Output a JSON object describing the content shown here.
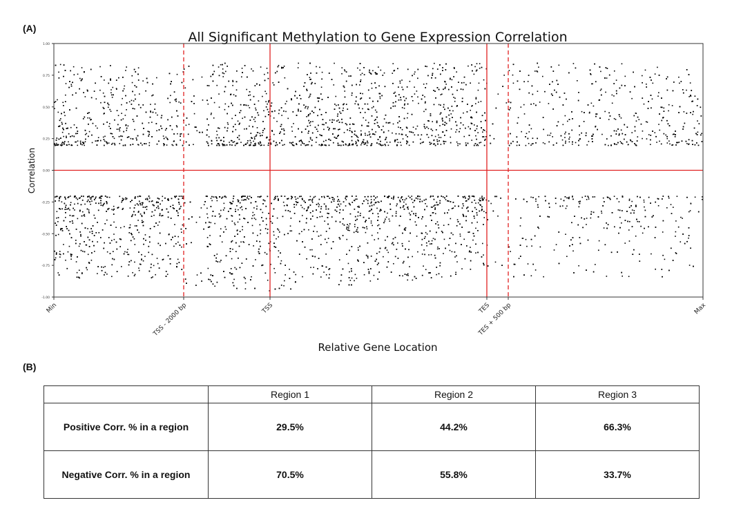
{
  "panel_labels": {
    "a": "(A)",
    "b": "(B)"
  },
  "chart_data": {
    "type": "scatter",
    "title": "All Significant Methylation to Gene Expression Correlation",
    "xlabel": "Relative Gene Location",
    "ylabel": "Correlation",
    "ylim": [
      -1.0,
      1.0
    ],
    "yticks": [
      "1.00",
      "0.75",
      "0.50",
      "0.25",
      "0.00",
      "-0.25",
      "-0.50",
      "-0.75",
      "-1.00"
    ],
    "ytick_values": [
      1.0,
      0.75,
      0.5,
      0.25,
      0.0,
      -0.25,
      -0.5,
      -0.75,
      -1.0
    ],
    "xticks": [
      "Min",
      "TSS - 2000 bp",
      "TSS",
      "TES",
      "TES + 500 bp",
      "Max"
    ],
    "xtick_positions": [
      0.0,
      0.2,
      0.333,
      0.667,
      0.7,
      1.0
    ],
    "reference_lines": [
      {
        "axis": "y",
        "value": 0.0,
        "style": "solid",
        "color": "#e02020"
      },
      {
        "axis": "x",
        "at": "TSS - 2000 bp",
        "style": "dashed",
        "color": "#e02020"
      },
      {
        "axis": "x",
        "at": "TSS",
        "style": "solid",
        "color": "#e02020"
      },
      {
        "axis": "x",
        "at": "TES",
        "style": "solid",
        "color": "#e02020"
      },
      {
        "axis": "x",
        "at": "TES + 500 bp",
        "style": "dashed",
        "color": "#e02020"
      }
    ],
    "points": {
      "description_of_distribution": [],
      "positive_band": [
        0.2,
        0.95
      ],
      "negative_band": [
        -0.2,
        -0.95
      ]
    },
    "marker_color": "#000000",
    "grid": false
  },
  "table": {
    "headers": [
      "",
      "Region 1",
      "Region 2",
      "Region 3"
    ],
    "rows": [
      {
        "label": "Positive Corr. % in a region",
        "values": [
          "29.5%",
          "44.2%",
          "66.3%"
        ]
      },
      {
        "label": "Negative Corr. % in a region",
        "values": [
          "70.5%",
          "55.8%",
          "33.7%"
        ]
      }
    ]
  }
}
